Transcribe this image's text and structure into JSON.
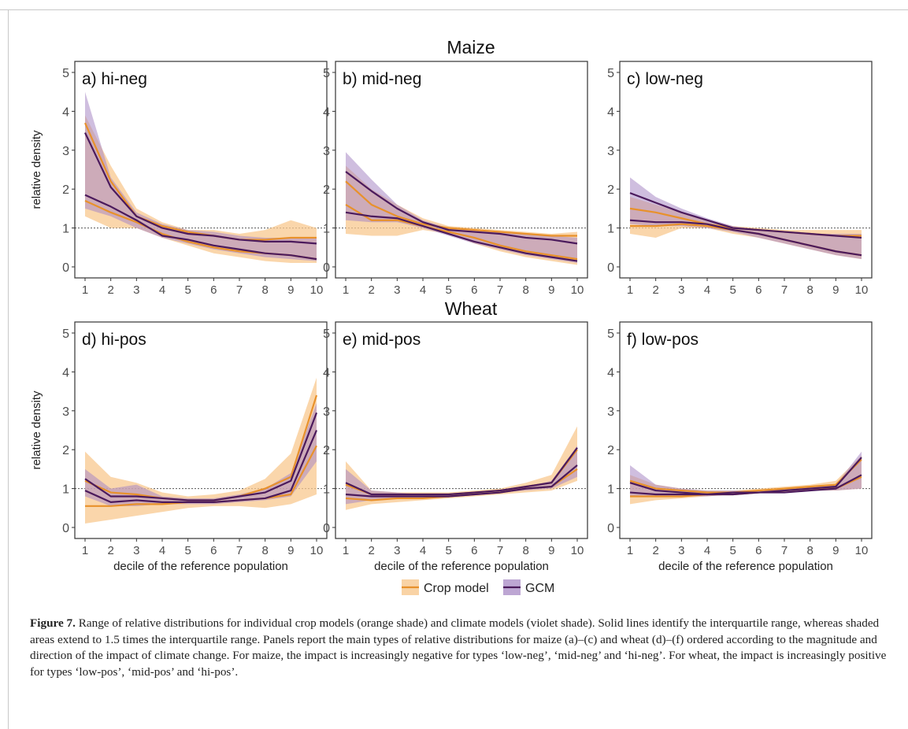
{
  "figure": {
    "caption_label": "Figure 7.",
    "caption_text": " Range of relative distributions for individual crop models (orange shade) and climate models (violet shade). Solid lines identify the interquartile range, whereas shaded areas extend to 1.5 times the interquartile range. Panels report the main types of relative distributions for maize (a)–(c) and wheat (d)–(f) ordered according to the magnitude and direction of the impact of climate change. For maize, the impact is increasingly negative for types ‘low-neg’, ‘mid-neg’ and ‘hi-neg’. For wheat, the impact is increasingly positive for types ‘low-pos’, ‘mid-pos’ and ‘hi-pos’."
  },
  "legend": {
    "items": [
      {
        "label": "Crop model",
        "line_color": "#e8912b",
        "fill_color": "#f8c88f"
      },
      {
        "label": "GCM",
        "line_color": "#4b1a5c",
        "fill_color": "#a788c4"
      }
    ]
  },
  "chart_data": [
    {
      "type": "line",
      "row_title": "Maize",
      "panel": "a) hi-neg",
      "x": [
        1,
        2,
        3,
        4,
        5,
        6,
        7,
        8,
        9,
        10
      ],
      "ylim": [
        0,
        5
      ],
      "yticks": [
        0,
        1,
        2,
        3,
        4,
        5
      ],
      "ylabel": "relative density",
      "xlabel": "",
      "reference_line": 1,
      "series": [
        {
          "name": "Crop model",
          "upper": [
            3.9,
            2.6,
            1.5,
            1.15,
            0.95,
            0.95,
            0.85,
            0.95,
            1.2,
            1.0
          ],
          "lower": [
            1.3,
            1.0,
            1.0,
            0.75,
            0.55,
            0.35,
            0.25,
            0.15,
            0.1,
            0.1
          ],
          "q_high": [
            3.7,
            2.2,
            1.3,
            1.05,
            0.9,
            0.8,
            0.7,
            0.7,
            0.75,
            0.75
          ],
          "q_low": [
            1.7,
            1.4,
            1.15,
            0.85,
            0.65,
            0.5,
            0.4,
            0.35,
            0.3,
            0.2
          ]
        },
        {
          "name": "GCM",
          "upper": [
            4.5,
            2.3,
            1.4,
            1.1,
            0.95,
            0.9,
            0.8,
            0.75,
            0.75,
            0.75
          ],
          "lower": [
            1.5,
            1.3,
            1.0,
            0.75,
            0.6,
            0.45,
            0.35,
            0.25,
            0.2,
            0.15
          ],
          "q_high": [
            3.45,
            2.05,
            1.3,
            1.0,
            0.85,
            0.8,
            0.7,
            0.65,
            0.65,
            0.6
          ],
          "q_low": [
            1.85,
            1.55,
            1.2,
            0.8,
            0.7,
            0.55,
            0.45,
            0.35,
            0.3,
            0.2
          ]
        }
      ]
    },
    {
      "type": "line",
      "row_title": "Maize",
      "panel": "b) mid-neg",
      "x": [
        1,
        2,
        3,
        4,
        5,
        6,
        7,
        8,
        9,
        10
      ],
      "ylim": [
        0,
        5
      ],
      "yticks": [
        0,
        1,
        2,
        3,
        4,
        5
      ],
      "ylabel": "",
      "xlabel": "",
      "reference_line": 1,
      "series": [
        {
          "name": "Crop model",
          "upper": [
            2.6,
            2.0,
            1.6,
            1.25,
            1.05,
            1.0,
            0.95,
            0.9,
            0.85,
            0.9
          ],
          "lower": [
            0.85,
            0.8,
            0.8,
            0.95,
            0.85,
            0.6,
            0.4,
            0.25,
            0.15,
            0.05
          ],
          "q_high": [
            2.2,
            1.6,
            1.3,
            1.1,
            1.0,
            0.95,
            0.9,
            0.85,
            0.8,
            0.8
          ],
          "q_low": [
            1.6,
            1.2,
            1.2,
            1.05,
            0.9,
            0.75,
            0.55,
            0.4,
            0.3,
            0.2
          ]
        },
        {
          "name": "GCM",
          "upper": [
            2.95,
            2.25,
            1.6,
            1.2,
            1.0,
            0.95,
            0.9,
            0.85,
            0.8,
            0.75
          ],
          "lower": [
            1.2,
            1.15,
            1.15,
            1.0,
            0.8,
            0.6,
            0.45,
            0.3,
            0.2,
            0.1
          ],
          "q_high": [
            2.45,
            1.95,
            1.5,
            1.15,
            0.95,
            0.9,
            0.85,
            0.75,
            0.7,
            0.6
          ],
          "q_low": [
            1.4,
            1.3,
            1.25,
            1.05,
            0.85,
            0.65,
            0.5,
            0.35,
            0.25,
            0.15
          ]
        }
      ]
    },
    {
      "type": "line",
      "row_title": "Maize",
      "panel": "c) low-neg",
      "x": [
        1,
        2,
        3,
        4,
        5,
        6,
        7,
        8,
        9,
        10
      ],
      "ylim": [
        0,
        5
      ],
      "yticks": [
        0,
        1,
        2,
        3,
        4,
        5
      ],
      "ylabel": "",
      "xlabel": "",
      "reference_line": 1,
      "series": [
        {
          "name": "Crop model",
          "upper": [
            1.8,
            1.6,
            1.4,
            1.2,
            1.05,
            1.0,
            0.95,
            0.95,
            0.95,
            0.95
          ],
          "lower": [
            0.85,
            0.75,
            1.0,
            1.0,
            0.85,
            0.75,
            0.6,
            0.45,
            0.3,
            0.2
          ],
          "q_high": [
            1.5,
            1.4,
            1.25,
            1.1,
            1.0,
            0.95,
            0.9,
            0.85,
            0.8,
            0.8
          ],
          "q_low": [
            1.05,
            1.05,
            1.1,
            1.05,
            0.95,
            0.85,
            0.7,
            0.55,
            0.4,
            0.3
          ]
        },
        {
          "name": "GCM",
          "upper": [
            2.3,
            1.8,
            1.5,
            1.25,
            1.05,
            0.95,
            0.9,
            0.85,
            0.85,
            0.85
          ],
          "lower": [
            1.1,
            1.05,
            1.05,
            1.0,
            0.9,
            0.75,
            0.6,
            0.45,
            0.3,
            0.2
          ],
          "q_high": [
            1.9,
            1.65,
            1.4,
            1.2,
            1.0,
            0.95,
            0.9,
            0.85,
            0.8,
            0.75
          ],
          "q_low": [
            1.2,
            1.15,
            1.15,
            1.1,
            0.95,
            0.85,
            0.7,
            0.55,
            0.4,
            0.3
          ]
        }
      ]
    },
    {
      "type": "line",
      "row_title": "Wheat",
      "panel": "d) hi-pos",
      "x": [
        1,
        2,
        3,
        4,
        5,
        6,
        7,
        8,
        9,
        10
      ],
      "ylim": [
        0,
        5
      ],
      "yticks": [
        0,
        1,
        2,
        3,
        4,
        5
      ],
      "ylabel": "relative density",
      "xlabel": "decile of the reference population",
      "reference_line": 1,
      "series": [
        {
          "name": "Crop model",
          "upper": [
            1.95,
            1.3,
            1.15,
            0.9,
            0.8,
            0.85,
            0.95,
            1.25,
            1.9,
            3.85
          ],
          "lower": [
            0.1,
            0.2,
            0.3,
            0.4,
            0.5,
            0.55,
            0.55,
            0.5,
            0.6,
            0.85
          ],
          "q_high": [
            1.2,
            0.9,
            0.85,
            0.75,
            0.7,
            0.7,
            0.8,
            1.0,
            1.3,
            3.4
          ],
          "q_low": [
            0.55,
            0.55,
            0.6,
            0.6,
            0.65,
            0.65,
            0.7,
            0.75,
            0.85,
            2.1
          ]
        },
        {
          "name": "GCM",
          "upper": [
            1.5,
            1.0,
            1.1,
            0.8,
            0.75,
            0.75,
            0.85,
            1.0,
            1.4,
            3.2
          ],
          "lower": [
            0.8,
            0.55,
            0.55,
            0.6,
            0.6,
            0.6,
            0.65,
            0.7,
            0.8,
            1.7
          ],
          "q_high": [
            1.25,
            0.8,
            0.8,
            0.75,
            0.7,
            0.7,
            0.8,
            0.9,
            1.2,
            2.95
          ],
          "q_low": [
            0.95,
            0.65,
            0.7,
            0.65,
            0.65,
            0.65,
            0.7,
            0.75,
            0.95,
            2.5
          ]
        }
      ]
    },
    {
      "type": "line",
      "row_title": "Wheat",
      "panel": "e) mid-pos",
      "x": [
        1,
        2,
        3,
        4,
        5,
        6,
        7,
        8,
        9,
        10
      ],
      "ylim": [
        0,
        5
      ],
      "yticks": [
        0,
        1,
        2,
        3,
        4,
        5
      ],
      "ylabel": "",
      "xlabel": "decile of the reference population",
      "reference_line": 1,
      "series": [
        {
          "name": "Crop model",
          "upper": [
            1.7,
            0.95,
            0.9,
            0.9,
            0.9,
            0.95,
            1.0,
            1.15,
            1.35,
            2.6
          ],
          "lower": [
            0.45,
            0.6,
            0.65,
            0.7,
            0.75,
            0.8,
            0.85,
            0.9,
            0.95,
            1.2
          ],
          "q_high": [
            1.1,
            0.85,
            0.85,
            0.85,
            0.85,
            0.9,
            0.95,
            1.05,
            1.15,
            2.0
          ],
          "q_low": [
            0.75,
            0.7,
            0.75,
            0.75,
            0.8,
            0.85,
            0.9,
            1.0,
            1.05,
            1.5
          ]
        },
        {
          "name": "GCM",
          "upper": [
            1.5,
            0.95,
            0.9,
            0.85,
            0.85,
            0.9,
            0.95,
            1.05,
            1.2,
            2.1
          ],
          "lower": [
            0.6,
            0.7,
            0.75,
            0.75,
            0.8,
            0.85,
            0.9,
            0.95,
            1.0,
            1.3
          ],
          "q_high": [
            1.15,
            0.85,
            0.85,
            0.85,
            0.85,
            0.9,
            0.95,
            1.05,
            1.15,
            2.05
          ],
          "q_low": [
            0.85,
            0.8,
            0.8,
            0.8,
            0.8,
            0.85,
            0.9,
            1.0,
            1.05,
            1.6
          ]
        }
      ]
    },
    {
      "type": "line",
      "row_title": "Wheat",
      "panel": "f) low-pos",
      "x": [
        1,
        2,
        3,
        4,
        5,
        6,
        7,
        8,
        9,
        10
      ],
      "ylim": [
        0,
        5
      ],
      "yticks": [
        0,
        1,
        2,
        3,
        4,
        5
      ],
      "ylabel": "",
      "xlabel": "decile of the reference population",
      "reference_line": 1,
      "series": [
        {
          "name": "Crop model",
          "upper": [
            1.35,
            1.1,
            1.0,
            0.95,
            0.95,
            1.0,
            1.05,
            1.1,
            1.2,
            1.85
          ],
          "lower": [
            0.6,
            0.7,
            0.75,
            0.8,
            0.85,
            0.9,
            0.9,
            0.95,
            0.95,
            1.0
          ],
          "q_high": [
            1.2,
            1.0,
            0.95,
            0.9,
            0.9,
            0.95,
            1.0,
            1.05,
            1.1,
            1.75
          ],
          "q_low": [
            0.8,
            0.8,
            0.8,
            0.85,
            0.85,
            0.9,
            0.95,
            1.0,
            1.0,
            1.3
          ]
        },
        {
          "name": "GCM",
          "upper": [
            1.6,
            1.1,
            1.0,
            0.95,
            0.95,
            0.95,
            1.0,
            1.05,
            1.1,
            1.95
          ],
          "lower": [
            0.8,
            0.8,
            0.8,
            0.8,
            0.85,
            0.9,
            0.9,
            0.95,
            0.95,
            1.0
          ],
          "q_high": [
            1.15,
            0.95,
            0.9,
            0.85,
            0.9,
            0.9,
            0.95,
            1.0,
            1.05,
            1.8
          ],
          "q_low": [
            0.9,
            0.85,
            0.85,
            0.85,
            0.85,
            0.9,
            0.9,
            0.95,
            1.0,
            1.35
          ]
        }
      ]
    }
  ]
}
